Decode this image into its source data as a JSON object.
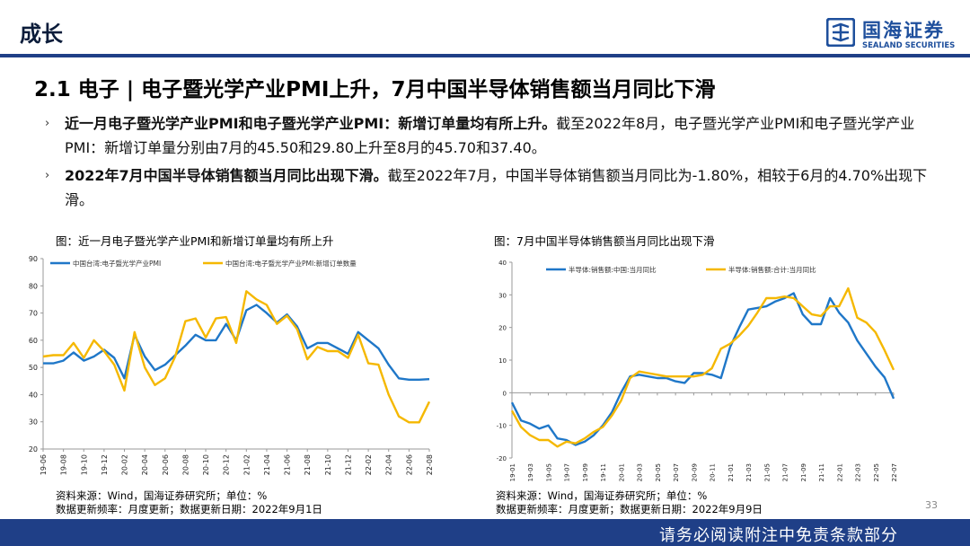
{
  "header": {
    "title": "成长",
    "logo_cn": "国海证券",
    "logo_en": "SEALAND SECURITIES"
  },
  "section_heading": "2.1 电子 | 电子暨光学产业PMI上升，7月中国半导体销售额当月同比下滑",
  "bullets": [
    {
      "bold": "近一月电子暨光学产业PMI和电子暨光学产业PMI：新增订单量均有所上升。",
      "text": "截至2022年8月，电子暨光学产业PMI和电子暨光学产业PMI：新增订单量分别由7月的45.50和29.80上升至8月的45.70和37.40。"
    },
    {
      "bold": "2022年7月中国半导体销售额当月同比出现下滑。",
      "text": "截至2022年7月，中国半导体销售额当月同比为-1.80%，相较于6月的4.70%出现下滑。"
    }
  ],
  "charts": {
    "chart1": {
      "caption": "图：近一月电子暨光学产业PMI和新增订单量均有所上升",
      "source_line1": "资料来源：Wind，国海证券研究所；单位：%",
      "source_line2": "数据更新频率：月度更新；数据更新日期：2022年9月1日"
    },
    "chart2": {
      "caption": "图：7月中国半导体销售额当月同比出现下滑",
      "source_line1": "资料来源：Wind，国海证券研究所；单位：%",
      "source_line2": "数据更新频率：月度更新；数据更新日期：2022年9月9日"
    }
  },
  "page_number": "33",
  "footer_text": "请务必阅读附注中免责条款部分",
  "colors": {
    "series_blue": "#1f77c8",
    "series_yellow": "#f5b800",
    "brand_navy": "#1f3f87"
  },
  "chart_data": [
    {
      "type": "line",
      "x": [
        "19-06",
        "19-07",
        "19-08",
        "19-09",
        "19-10",
        "19-11",
        "19-12",
        "20-01",
        "20-02",
        "20-03",
        "20-04",
        "20-05",
        "20-06",
        "20-07",
        "20-08",
        "20-09",
        "20-10",
        "20-11",
        "20-12",
        "21-01",
        "21-02",
        "21-03",
        "21-04",
        "21-05",
        "21-06",
        "21-07",
        "21-08",
        "21-09",
        "21-10",
        "21-11",
        "21-12",
        "22-01",
        "22-02",
        "22-03",
        "22-04",
        "22-05",
        "22-06",
        "22-07",
        "22-08"
      ],
      "x_ticks": [
        "19-06",
        "19-08",
        "19-10",
        "19-12",
        "20-02",
        "20-04",
        "20-06",
        "20-08",
        "20-10",
        "20-12",
        "21-02",
        "21-04",
        "21-06",
        "21-08",
        "21-10",
        "21-12",
        "22-02",
        "22-04",
        "22-06",
        "22-08"
      ],
      "ylim": [
        20,
        90
      ],
      "y_ticks": [
        20,
        30,
        40,
        50,
        60,
        70,
        80,
        90
      ],
      "series": [
        {
          "name": "中国台湾:电子暨光学产业PMI",
          "color": "#1f77c8",
          "values": [
            51.5,
            51.5,
            52.5,
            55.5,
            52.5,
            54.0,
            56.5,
            53.5,
            46.0,
            62.0,
            54.0,
            49.0,
            51.0,
            54.5,
            58.0,
            62.0,
            60.0,
            60.0,
            66.0,
            60.0,
            71.0,
            73.0,
            70.0,
            66.5,
            69.5,
            65.0,
            57.0,
            59.0,
            59.0,
            57.0,
            55.0,
            63.0,
            60.0,
            57.0,
            51.0,
            46.0,
            45.5,
            45.5,
            45.7
          ]
        },
        {
          "name": "中国台湾:电子暨光学产业PMI:新增订单数量",
          "color": "#f5b800",
          "values": [
            54.0,
            54.5,
            54.5,
            59.0,
            53.5,
            60.0,
            56.0,
            51.0,
            41.5,
            63.0,
            50.0,
            43.5,
            46.0,
            54.0,
            67.0,
            68.0,
            61.0,
            68.0,
            68.5,
            59.0,
            78.0,
            75.0,
            73.0,
            66.0,
            69.0,
            64.0,
            53.0,
            57.5,
            56.0,
            56.0,
            53.5,
            62.0,
            51.5,
            51.0,
            40.0,
            32.0,
            29.8,
            29.8,
            37.4
          ]
        }
      ]
    },
    {
      "type": "line",
      "x": [
        "19-01",
        "19-02",
        "19-03",
        "19-04",
        "19-05",
        "19-06",
        "19-07",
        "19-08",
        "19-09",
        "19-10",
        "19-11",
        "19-12",
        "20-01",
        "20-02",
        "20-03",
        "20-04",
        "20-05",
        "20-06",
        "20-07",
        "20-08",
        "20-09",
        "20-10",
        "20-11",
        "20-12",
        "21-01",
        "21-02",
        "21-03",
        "21-04",
        "21-05",
        "21-06",
        "21-07",
        "21-08",
        "21-09",
        "21-10",
        "21-11",
        "21-12",
        "22-01",
        "22-02",
        "22-03",
        "22-04",
        "22-05",
        "22-06",
        "22-07"
      ],
      "x_ticks": [
        "19-01",
        "19-03",
        "19-05",
        "19-07",
        "19-09",
        "19-11",
        "20-01",
        "20-03",
        "20-05",
        "20-07",
        "20-09",
        "20-11",
        "21-01",
        "21-03",
        "21-05",
        "21-07",
        "21-09",
        "21-11",
        "22-01",
        "22-03",
        "22-05",
        "22-07"
      ],
      "ylim": [
        -20,
        40
      ],
      "y_ticks": [
        -20,
        -10,
        0,
        10,
        20,
        30,
        40
      ],
      "series": [
        {
          "name": "半导体:销售额:中国:当月同比",
          "color": "#1f77c8",
          "values": [
            -3.0,
            -8.5,
            -9.5,
            -11.0,
            -10.0,
            -14.0,
            -14.5,
            -16.0,
            -15.0,
            -13.0,
            -10.0,
            -6.0,
            0.0,
            5.0,
            5.5,
            5.0,
            4.5,
            4.5,
            3.5,
            3.0,
            6.0,
            6.0,
            5.5,
            4.5,
            14.0,
            20.0,
            25.5,
            26.0,
            26.5,
            28.0,
            29.0,
            30.5,
            24.0,
            21.0,
            21.0,
            29.0,
            24.5,
            21.5,
            16.0,
            12.0,
            8.0,
            4.7,
            -1.8
          ]
        },
        {
          "name": "半导体:销售额:合计:当月同比",
          "color": "#f5b800",
          "values": [
            -5.5,
            -10.5,
            -13.0,
            -14.5,
            -14.5,
            -16.5,
            -15.0,
            -15.5,
            -14.0,
            -12.0,
            -10.5,
            -7.0,
            -2.5,
            4.5,
            6.5,
            6.0,
            5.5,
            5.0,
            5.0,
            5.0,
            5.0,
            5.5,
            7.5,
            13.5,
            15.0,
            17.5,
            20.5,
            24.5,
            29.0,
            29.0,
            29.5,
            29.0,
            26.5,
            24.0,
            23.5,
            26.5,
            26.5,
            32.0,
            23.0,
            21.5,
            18.5,
            13.0,
            7.0
          ]
        }
      ]
    }
  ]
}
